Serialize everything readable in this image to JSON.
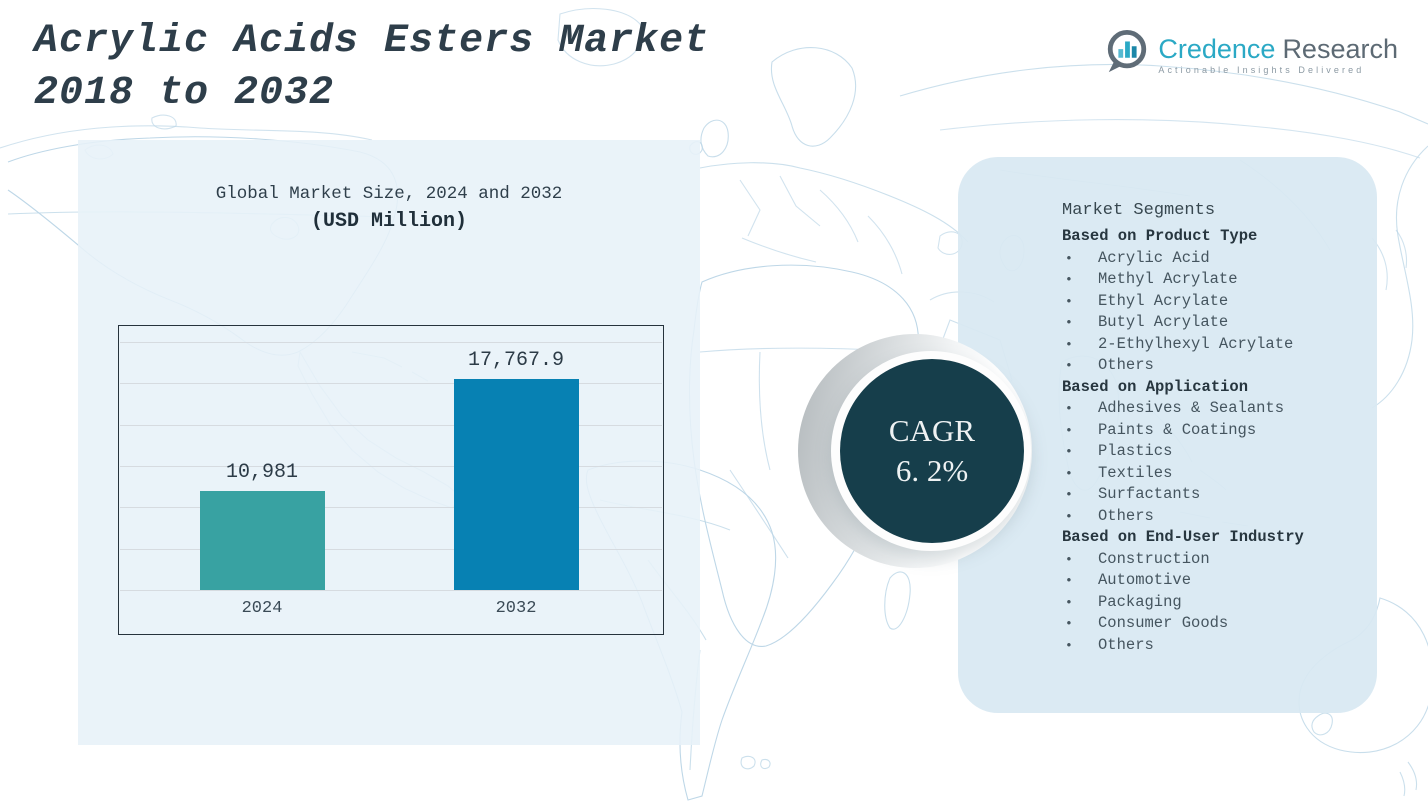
{
  "header": {
    "title_line1": "Acrylic Acids Esters Market",
    "title_line2": "2018 to 2032"
  },
  "logo": {
    "brand_primary": "Credence",
    "brand_secondary": "Research",
    "tagline": "Actionable Insights Delivered",
    "icon": "bar-chart-bubble-icon",
    "teal": "#2ba9c5",
    "gray": "#5d6a74"
  },
  "chart_data": {
    "type": "bar",
    "title": "Global Market Size, 2024 and 2032",
    "subtitle": "(USD Million)",
    "categories": [
      "2024",
      "2032"
    ],
    "values": [
      10981,
      17767.9
    ],
    "value_labels": [
      "10,981",
      "17,767.9"
    ],
    "bar_colors": [
      "#38a2a2",
      "#0781b3"
    ],
    "xlabel": "",
    "ylabel": "",
    "ylim": [
      5000,
      20000
    ],
    "gridline_count": 7,
    "grid": true,
    "legend_position": "none"
  },
  "cagr": {
    "label": "CAGR",
    "value": "6. 2%",
    "circle_color": "#163e4b",
    "text_color": "#eef2f3"
  },
  "segments": {
    "title": "Market Segments",
    "bullet": "•",
    "groups": [
      {
        "heading": "Based on Product Type",
        "items": [
          "Acrylic Acid",
          "Methyl Acrylate",
          "Ethyl Acrylate",
          "Butyl Acrylate",
          "2-Ethylhexyl Acrylate",
          "Others"
        ]
      },
      {
        "heading": "Based on Application",
        "items": [
          "Adhesives & Sealants",
          "Paints & Coatings",
          "Plastics",
          "Textiles",
          "Surfactants",
          "Others"
        ]
      },
      {
        "heading": "Based on End-User Industry",
        "items": [
          "Construction",
          "Automotive",
          "Packaging",
          "Consumer Goods",
          "Others"
        ]
      }
    ]
  },
  "colors": {
    "panel_left": "#e7f1f8",
    "panel_right": "#d8e8f1",
    "map_line": "#b7d3e5",
    "chart_border": "#26323c",
    "gridline": "#d6dbe0",
    "title_text": "#2e3e4a"
  }
}
